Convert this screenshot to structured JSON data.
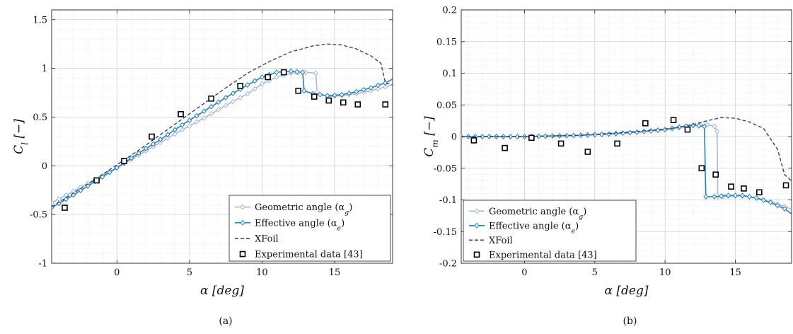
{
  "chart_data": [
    {
      "type": "line",
      "panel_label": "(a)",
      "xlabel": "α [deg]",
      "ylabel": "C_l [−]",
      "xlim": [
        -4.5,
        19
      ],
      "ylim": [
        -1,
        1.6
      ],
      "xticks": [
        0,
        5,
        10,
        15
      ],
      "xtick_labels": [
        "0",
        "5",
        "10",
        "15"
      ],
      "yticks": [
        -1,
        -0.5,
        0,
        0.5,
        1,
        1.5
      ],
      "ytick_labels": [
        "-1",
        "-0.5",
        "0",
        "0.5",
        "1",
        "1.5"
      ],
      "grid": true,
      "legend_position": "bottom-right",
      "legend": [
        "Geometric angle (α_g)",
        "Effective angle (α_e)",
        "XFoil",
        "Experimental data [43]"
      ],
      "series": [
        {
          "name": "Geometric angle (α_g)",
          "color": "#a9b8d6",
          "x": [
            -4.5,
            -3,
            -1.5,
            0,
            1.5,
            3,
            4.5,
            6,
            7.5,
            9,
            10,
            11,
            12,
            13,
            13.7,
            13.8,
            14.5,
            15.5,
            16.5,
            17.5,
            18.5,
            19
          ],
          "y": [
            -0.38,
            -0.26,
            -0.14,
            -0.02,
            0.11,
            0.24,
            0.37,
            0.49,
            0.62,
            0.74,
            0.84,
            0.91,
            0.95,
            0.96,
            0.95,
            0.76,
            0.71,
            0.72,
            0.74,
            0.77,
            0.81,
            0.83
          ]
        },
        {
          "name": "Effective angle (α_e)",
          "color": "#1f82c8",
          "x": [
            -4.5,
            -3,
            -1.5,
            0,
            1.5,
            3,
            4.5,
            6,
            7.5,
            9,
            10,
            11,
            12,
            12.8,
            12.9,
            13.5,
            14.5,
            15.5,
            16.5,
            17.5,
            18.5,
            19
          ],
          "y": [
            -0.43,
            -0.3,
            -0.16,
            -0.02,
            0.13,
            0.27,
            0.42,
            0.56,
            0.7,
            0.83,
            0.91,
            0.96,
            0.97,
            0.96,
            0.77,
            0.74,
            0.72,
            0.73,
            0.76,
            0.8,
            0.85,
            0.89
          ]
        },
        {
          "name": "XFoil",
          "color": "#35456b",
          "dashed": true,
          "x": [
            -4.5,
            -3,
            -1.5,
            0,
            1.5,
            3,
            4.5,
            6,
            7.5,
            9,
            10.5,
            12,
            13.5,
            14.5,
            15.5,
            16.5,
            17.5,
            18.2,
            18.5,
            19
          ],
          "y": [
            -0.42,
            -0.28,
            -0.14,
            0.01,
            0.16,
            0.32,
            0.48,
            0.64,
            0.8,
            0.95,
            1.07,
            1.17,
            1.23,
            1.25,
            1.24,
            1.2,
            1.13,
            1.05,
            0.85,
            0.83
          ]
        },
        {
          "name": "Experimental data [43]",
          "color": "#000000",
          "marker": "square",
          "x": [
            -3.6,
            -1.4,
            0.5,
            2.4,
            4.4,
            6.5,
            8.5,
            10.4,
            11.5,
            12.5,
            13.6,
            14.6,
            15.6,
            16.6,
            18.5
          ],
          "y": [
            -0.43,
            -0.15,
            0.05,
            0.3,
            0.53,
            0.69,
            0.82,
            0.91,
            0.96,
            0.77,
            0.71,
            0.67,
            0.65,
            0.63,
            0.63
          ]
        }
      ]
    },
    {
      "type": "line",
      "panel_label": "(b)",
      "xlabel": "α [deg]",
      "ylabel": "C_m [−]",
      "xlim": [
        -4.5,
        19
      ],
      "ylim": [
        -0.2,
        0.2
      ],
      "xticks": [
        0,
        5,
        10,
        15
      ],
      "xtick_labels": [
        "0",
        "5",
        "10",
        "15"
      ],
      "yticks": [
        -0.2,
        -0.15,
        -0.1,
        -0.05,
        0,
        0.05,
        0.1,
        0.15,
        0.2
      ],
      "ytick_labels": [
        "-0.2",
        "-0.15",
        "-0.1",
        "-0.05",
        "0",
        "0.05",
        "0.1",
        "0.15",
        "0.2"
      ],
      "grid": true,
      "legend_position": "bottom-left",
      "legend": [
        "Geometric angle (α_g)",
        "Effective angle (α_e)",
        "XFoil",
        "Experimental data [43]"
      ],
      "series": [
        {
          "name": "Geometric angle (α_g)",
          "color": "#a9b8d6",
          "x": [
            -4.5,
            -2,
            0,
            2,
            4,
            6,
            8,
            10,
            11,
            12,
            13,
            13.5,
            13.7,
            13.75,
            14.5,
            15.5,
            16.5,
            17.5,
            18.5,
            19
          ],
          "y": [
            0.0,
            0.0,
            0.0,
            0.001,
            0.002,
            0.004,
            0.007,
            0.011,
            0.014,
            0.017,
            0.019,
            0.016,
            0.008,
            -0.095,
            -0.094,
            -0.094,
            -0.097,
            -0.103,
            -0.11,
            -0.115
          ]
        },
        {
          "name": "Effective angle (α_e)",
          "color": "#1f82c8",
          "x": [
            -4.5,
            -2,
            0,
            2,
            4,
            6,
            8,
            10,
            11,
            12,
            12.8,
            12.9,
            13.5,
            14.5,
            15.5,
            16.5,
            17.5,
            18.5,
            19
          ],
          "y": [
            0.0,
            0.0,
            0.0,
            0.001,
            0.002,
            0.004,
            0.007,
            0.011,
            0.015,
            0.018,
            0.016,
            -0.095,
            -0.095,
            -0.093,
            -0.093,
            -0.097,
            -0.104,
            -0.114,
            -0.122
          ]
        },
        {
          "name": "XFoil",
          "color": "#35456b",
          "dashed": true,
          "x": [
            -4.5,
            0,
            4,
            8,
            10.5,
            12,
            13,
            14,
            15,
            16,
            17,
            18,
            18.5,
            19
          ],
          "y": [
            0.0,
            0.0,
            0.002,
            0.008,
            0.013,
            0.019,
            0.025,
            0.03,
            0.029,
            0.023,
            0.013,
            -0.02,
            -0.06,
            -0.07
          ]
        },
        {
          "name": "Experimental data [43]",
          "color": "#000000",
          "marker": "square",
          "x": [
            -3.6,
            -1.4,
            0.5,
            2.6,
            4.5,
            6.6,
            8.6,
            10.6,
            11.6,
            12.6,
            13.6,
            14.7,
            15.6,
            16.7,
            18.6
          ],
          "y": [
            -0.006,
            -0.018,
            -0.002,
            -0.011,
            -0.024,
            -0.011,
            0.021,
            0.026,
            0.011,
            -0.05,
            -0.06,
            -0.079,
            -0.082,
            -0.088,
            -0.077
          ]
        }
      ]
    }
  ]
}
